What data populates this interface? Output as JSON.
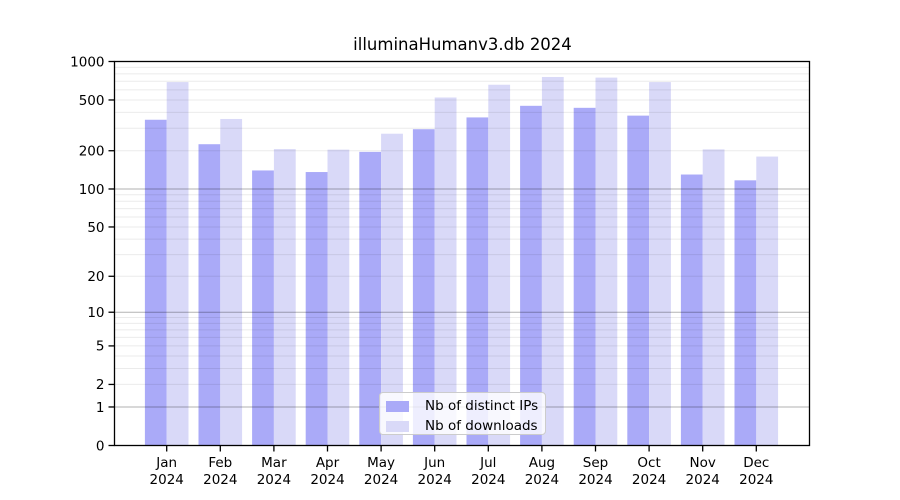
{
  "chart_data": {
    "type": "bar",
    "title": "illuminaHumanv3.db 2024",
    "categories": [
      "Jan 2024",
      "Feb 2024",
      "Mar 2024",
      "Apr 2024",
      "May 2024",
      "Jun 2024",
      "Jul 2024",
      "Aug 2024",
      "Sep 2024",
      "Oct 2024",
      "Nov 2024",
      "Dec 2024"
    ],
    "series": [
      {
        "name": "Nb of distinct IPs",
        "color": "#aaaaf8",
        "values": [
          350,
          225,
          140,
          136,
          196,
          295,
          365,
          450,
          434,
          377,
          130,
          117
        ]
      },
      {
        "name": "Nb of downloads",
        "color": "#d9d9f8",
        "values": [
          690,
          355,
          206,
          204,
          272,
          523,
          658,
          757,
          748,
          690,
          205,
          180
        ]
      }
    ],
    "xlabel": "",
    "ylabel": "",
    "yscale": "log1p",
    "ylim": [
      0,
      1000
    ],
    "yticks": [
      0,
      1,
      2,
      5,
      10,
      20,
      50,
      100,
      200,
      500,
      1000
    ],
    "grid": "horizontal; faint minor lines at 2-9 of each decade, darker lines at 1, 10, 100, 1000",
    "legend_position": "lower center, inside plot area",
    "bar_grouping": "two bars per month, side by side, no gap within pair"
  },
  "colors": {
    "distinct_ips_bar": "#aaaaf8",
    "downloads_bar": "#d9d9f8",
    "plot_border": "#000000",
    "major_gridline": "rgba(0,0,0,0.30)",
    "minor_gridline": "rgba(0,0,0,0.08)",
    "background": "#ffffff",
    "text": "#000000"
  }
}
